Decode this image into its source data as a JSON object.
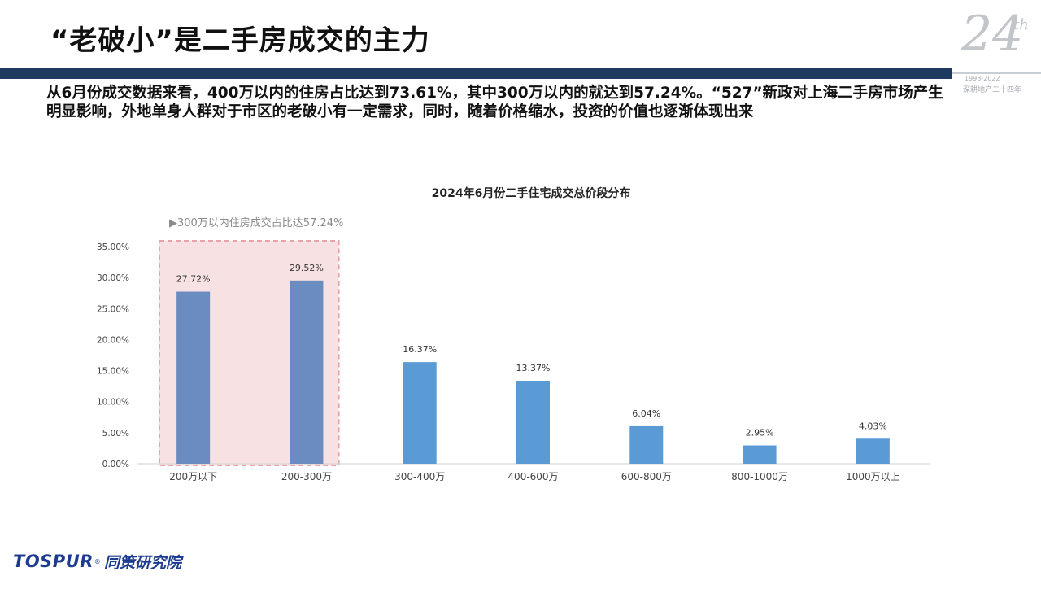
{
  "page": {
    "title": "“老破小”是二手房成交的主力",
    "summary": "从6月份成交数据来看，400万以内的住房占比达到73.61%，其中300万以内的就达到57.24%。“527”新政对上海二手房市场产生明显影响，外地单身人群对于市区的老破小有一定需求，同时，随着价格缩水，投资的价值也逐渐体现出来"
  },
  "badge": {
    "number": "24",
    "suffix": "th",
    "years": "1998-2022",
    "subtitle": "深耕地产二十四年"
  },
  "logo": {
    "en": "TOSPUR",
    "reg": "®",
    "cn": "同策研究院"
  },
  "colors": {
    "title_bar": "#1f3a5f",
    "bar_highlight": "#6b8cc0",
    "bar_normal": "#5b9bd5",
    "highlight_fill": "#f7e1e2",
    "highlight_border": "#e9a2a6"
  },
  "chart_data": {
    "type": "bar",
    "title": "2024年6月份二手住宅成交总价段分布",
    "annotation": "▶300万以内住房成交占比达57.24%",
    "categories": [
      "200万以下",
      "200-300万",
      "300-400万",
      "400-600万",
      "600-800万",
      "800-1000万",
      "1000万以上"
    ],
    "values": [
      27.72,
      29.52,
      16.37,
      13.37,
      6.04,
      2.95,
      4.03
    ],
    "data_labels": [
      "27.72%",
      "29.52%",
      "16.37%",
      "13.37%",
      "6.04%",
      "2.95%",
      "4.03%"
    ],
    "highlighted_categories": [
      "200万以下",
      "200-300万"
    ],
    "ylim": [
      0,
      35
    ],
    "yticks": [
      "0.00%",
      "5.00%",
      "10.00%",
      "15.00%",
      "20.00%",
      "25.00%",
      "30.00%",
      "35.00%"
    ],
    "xlabel": "",
    "ylabel": "",
    "grid": false,
    "legend": "none"
  }
}
